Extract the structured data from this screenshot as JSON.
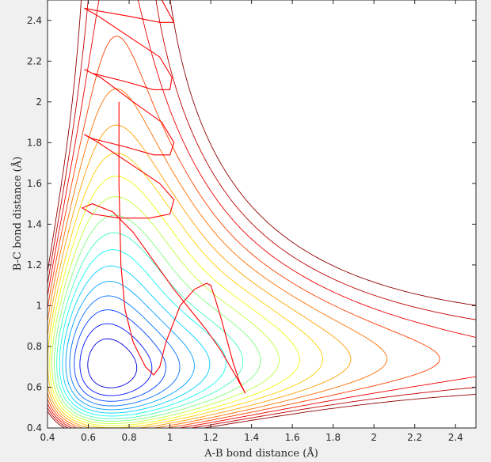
{
  "chart_data": {
    "type": "line",
    "title": "",
    "xlabel": "A-B bond distance (Å)",
    "ylabel": "B-C bond distance (Å)",
    "xlim": [
      0.4,
      2.5
    ],
    "ylim": [
      0.4,
      2.5
    ],
    "xticks": [
      "0.4",
      "0.6",
      "0.8",
      "1",
      "1.2",
      "1.4",
      "1.6",
      "1.8",
      "2",
      "2.2",
      "2.4"
    ],
    "yticks": [
      "0.4",
      "0.6",
      "0.8",
      "1",
      "1.2",
      "1.4",
      "1.6",
      "1.8",
      "2",
      "2.2",
      "2.4"
    ],
    "grid": false,
    "legend": "none",
    "contour_colors": [
      "#00008f",
      "#0000b0",
      "#0000d6",
      "#0010ff",
      "#0040ff",
      "#0070ff",
      "#00a0ff",
      "#00d0ff",
      "#10ffef",
      "#40ffbf",
      "#80ff80",
      "#bfff40",
      "#efff10",
      "#ffd000",
      "#ffa000",
      "#ff7000",
      "#ff4000",
      "#ef0000",
      "#c00000",
      "#900000"
    ],
    "trajectory_color": "#ff0000",
    "series": [
      {
        "kind": "trajectory",
        "x": [
          0.75,
          0.75,
          0.76,
          0.78,
          0.82,
          0.88,
          0.92,
          0.95,
          0.98,
          1.05,
          1.12,
          1.18,
          1.2,
          1.22,
          1.25,
          1.28,
          1.31,
          1.34,
          1.37,
          1.32,
          1.25,
          1.18,
          1.1,
          1.02,
          0.92,
          0.82,
          0.72,
          0.62,
          0.57,
          0.62,
          0.75,
          0.9,
          1.0,
          1.02,
          0.95,
          0.8,
          0.65,
          0.58,
          0.62,
          0.78,
          0.92,
          1.0,
          1.02,
          0.96,
          0.82,
          0.66,
          0.58,
          0.62,
          0.78,
          0.92,
          1.0,
          1.01,
          0.95,
          0.8,
          0.65,
          0.58,
          0.63,
          0.8,
          0.95,
          1.02,
          0.96
        ],
        "y": [
          2.0,
          1.6,
          1.2,
          0.98,
          0.82,
          0.7,
          0.66,
          0.7,
          0.82,
          1.0,
          1.08,
          1.11,
          1.1,
          1.04,
          0.94,
          0.83,
          0.72,
          0.63,
          0.57,
          0.66,
          0.78,
          0.88,
          0.98,
          1.08,
          1.22,
          1.36,
          1.46,
          1.5,
          1.48,
          1.45,
          1.43,
          1.43,
          1.45,
          1.52,
          1.6,
          1.7,
          1.8,
          1.84,
          1.82,
          1.78,
          1.74,
          1.74,
          1.8,
          1.9,
          2.0,
          2.12,
          2.16,
          2.14,
          2.1,
          2.06,
          2.06,
          2.12,
          2.22,
          2.32,
          2.42,
          2.46,
          2.45,
          2.42,
          2.39,
          2.39,
          2.5
        ]
      }
    ]
  }
}
